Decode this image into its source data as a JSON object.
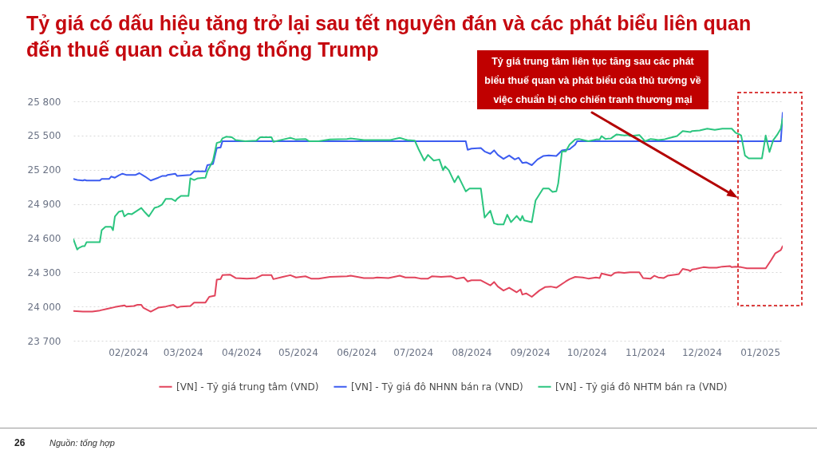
{
  "chart_data": {
    "type": "line",
    "title": "Tỷ giá có dấu hiệu tăng trở lại sau tết nguyên đán và các phát biểu liên quan đến thuế quan của tổng thống Trump",
    "annotations": [
      "Tỷ giá trung tâm liên tục tăng sau các phát biểu thuế quan và phát biểu của thủ tướng về việc chuẩn bị cho chiến tranh thương mại",
      "26",
      "Nguồn: tổng hợp"
    ],
    "xlim": [
      "2024-01-03",
      "2025-01-13"
    ],
    "xticks": [
      {
        "value": "2024-02-01",
        "label": "02/2024"
      },
      {
        "value": "2024-03-01",
        "label": "03/2024"
      },
      {
        "value": "2024-04-01",
        "label": "04/2024"
      },
      {
        "value": "2024-05-01",
        "label": "05/2024"
      },
      {
        "value": "2024-06-01",
        "label": "06/2024"
      },
      {
        "value": "2024-07-01",
        "label": "07/2024"
      },
      {
        "value": "2024-08-01",
        "label": "08/2024"
      },
      {
        "value": "2024-09-01",
        "label": "09/2024"
      },
      {
        "value": "2024-10-01",
        "label": "10/2024"
      },
      {
        "value": "2024-11-01",
        "label": "11/2024"
      },
      {
        "value": "2024-12-01",
        "label": "12/2024"
      },
      {
        "value": "2025-01-01",
        "label": "01/2025"
      }
    ],
    "ylim": [
      23700,
      25800
    ],
    "yticks": [
      {
        "value": 23700,
        "label": "23 700"
      },
      {
        "value": 24000,
        "label": "24 000"
      },
      {
        "value": 24300,
        "label": "24 300"
      },
      {
        "value": 24600,
        "label": "24 600"
      },
      {
        "value": 24900,
        "label": "24 900"
      },
      {
        "value": 25200,
        "label": "25 200"
      },
      {
        "value": 25500,
        "label": "25 500"
      },
      {
        "value": 25800,
        "label": "25 800"
      }
    ],
    "grid": "y",
    "legend": "bottom",
    "line_style": "solid",
    "series": [
      {
        "name": "[VN] - Tỷ giá trung tâm (VND)",
        "color": "#e2445c",
        "x": [
          "2024-01-03",
          "2024-01-08",
          "2024-01-13",
          "2024-01-17",
          "2024-01-21",
          "2024-01-25",
          "2024-01-30",
          "2024-01-31",
          "2024-02-04",
          "2024-02-06",
          "2024-02-08",
          "2024-02-09",
          "2024-02-13",
          "2024-02-17",
          "2024-02-21",
          "2024-02-25",
          "2024-02-27",
          "2024-02-29",
          "2024-03-05",
          "2024-03-07",
          "2024-03-13",
          "2024-03-15",
          "2024-03-18",
          "2024-03-19",
          "2024-03-21",
          "2024-03-22",
          "2024-03-26",
          "2024-03-29",
          "2024-04-04",
          "2024-04-09",
          "2024-04-12",
          "2024-04-17",
          "2024-04-18",
          "2024-04-23",
          "2024-04-27",
          "2024-04-30",
          "2024-05-05",
          "2024-05-08",
          "2024-05-12",
          "2024-05-18",
          "2024-05-27",
          "2024-05-29",
          "2024-06-05",
          "2024-06-10",
          "2024-06-12",
          "2024-06-18",
          "2024-06-24",
          "2024-06-27",
          "2024-07-02",
          "2024-07-05",
          "2024-07-09",
          "2024-07-11",
          "2024-07-16",
          "2024-07-21",
          "2024-07-24",
          "2024-07-28",
          "2024-07-30",
          "2024-08-01",
          "2024-08-06",
          "2024-08-11",
          "2024-08-13",
          "2024-08-15",
          "2024-08-18",
          "2024-08-21",
          "2024-08-25",
          "2024-08-27",
          "2024-08-28",
          "2024-08-30",
          "2024-09-02",
          "2024-09-06",
          "2024-09-09",
          "2024-09-12",
          "2024-09-15",
          "2024-09-20",
          "2024-09-22",
          "2024-09-25",
          "2024-09-29",
          "2024-10-02",
          "2024-10-06",
          "2024-10-08",
          "2024-10-09",
          "2024-10-14",
          "2024-10-16",
          "2024-10-18",
          "2024-10-21",
          "2024-10-24",
          "2024-10-29",
          "2024-10-31",
          "2024-11-04",
          "2024-11-06",
          "2024-11-08",
          "2024-11-11",
          "2024-11-13",
          "2024-11-17",
          "2024-11-19",
          "2024-11-21",
          "2024-11-24",
          "2024-11-25",
          "2024-11-26",
          "2024-11-28",
          "2024-12-02",
          "2024-12-05",
          "2024-12-09",
          "2024-12-12",
          "2024-12-16",
          "2024-12-17",
          "2024-12-19",
          "2024-12-22",
          "2024-12-25",
          "2025-01-04",
          "2025-01-07",
          "2025-01-09",
          "2025-01-12",
          "2025-01-13"
        ],
        "values": [
          23960,
          23955,
          23955,
          23965,
          23980,
          23995,
          24010,
          24000,
          24005,
          24015,
          24015,
          23990,
          23955,
          23990,
          24000,
          24015,
          23990,
          24000,
          24005,
          24035,
          24035,
          24085,
          24095,
          24235,
          24240,
          24275,
          24280,
          24250,
          24245,
          24250,
          24275,
          24275,
          24240,
          24260,
          24275,
          24255,
          24265,
          24245,
          24245,
          24260,
          24265,
          24270,
          24250,
          24250,
          24255,
          24250,
          24270,
          24255,
          24255,
          24245,
          24245,
          24265,
          24260,
          24265,
          24245,
          24255,
          24220,
          24230,
          24230,
          24185,
          24215,
          24175,
          24140,
          24165,
          24125,
          24150,
          24105,
          24115,
          24085,
          24140,
          24170,
          24175,
          24165,
          24220,
          24240,
          24260,
          24255,
          24245,
          24255,
          24250,
          24290,
          24270,
          24295,
          24300,
          24295,
          24300,
          24300,
          24250,
          24245,
          24270,
          24255,
          24250,
          24270,
          24280,
          24285,
          24330,
          24320,
          24310,
          24325,
          24330,
          24345,
          24340,
          24340,
          24350,
          24355,
          24345,
          24350,
          24345,
          24335,
          24335,
          24410,
          24465,
          24495,
          24530
        ]
      },
      {
        "name": "[VN] - Tỷ giá đô NHNN bán ra (VND)",
        "color": "#3c5cf0",
        "x": [
          "2024-01-03",
          "2024-01-05",
          "2024-01-08",
          "2024-01-09",
          "2024-01-10",
          "2024-01-17",
          "2024-01-18",
          "2024-01-22",
          "2024-01-23",
          "2024-01-25",
          "2024-01-27",
          "2024-01-29",
          "2024-01-31",
          "2024-02-05",
          "2024-02-07",
          "2024-02-10",
          "2024-02-13",
          "2024-02-17",
          "2024-02-19",
          "2024-02-21",
          "2024-02-22",
          "2024-02-26",
          "2024-02-27",
          "2024-03-05",
          "2024-03-07",
          "2024-03-13",
          "2024-03-14",
          "2024-03-17",
          "2024-03-19",
          "2024-03-21",
          "2024-03-22",
          "2024-07-29",
          "2024-07-30",
          "2024-08-01",
          "2024-08-06",
          "2024-08-08",
          "2024-08-11",
          "2024-08-13",
          "2024-08-15",
          "2024-08-18",
          "2024-08-21",
          "2024-08-24",
          "2024-08-26",
          "2024-08-28",
          "2024-08-30",
          "2024-09-02",
          "2024-09-05",
          "2024-09-08",
          "2024-09-11",
          "2024-09-15",
          "2024-09-18",
          "2024-09-22",
          "2024-09-25",
          "2024-09-26",
          "2025-01-12",
          "2025-01-13"
        ],
        "values": [
          25120,
          25110,
          25105,
          25110,
          25105,
          25105,
          25120,
          25120,
          25140,
          25130,
          25150,
          25165,
          25155,
          25155,
          25170,
          25140,
          25105,
          25130,
          25145,
          25145,
          25155,
          25165,
          25145,
          25155,
          25185,
          25185,
          25240,
          25250,
          25390,
          25395,
          25450,
          25450,
          25375,
          25385,
          25390,
          25360,
          25340,
          25370,
          25330,
          25295,
          25325,
          25290,
          25305,
          25260,
          25265,
          25240,
          25290,
          25320,
          25325,
          25320,
          25370,
          25380,
          25420,
          25450,
          25450,
          25700
        ]
      },
      {
        "name": "[VN] - Tỷ giá đô NHTM bán ra (VND)",
        "color": "#2bc57f",
        "x": [
          "2024-01-03",
          "2024-01-05",
          "2024-01-06",
          "2024-01-08",
          "2024-01-09",
          "2024-01-10",
          "2024-01-17",
          "2024-01-18",
          "2024-01-20",
          "2024-01-23",
          "2024-01-24",
          "2024-01-25",
          "2024-01-27",
          "2024-01-29",
          "2024-01-30",
          "2024-02-01",
          "2024-02-03",
          "2024-02-08",
          "2024-02-10",
          "2024-02-12",
          "2024-02-15",
          "2024-02-17",
          "2024-02-19",
          "2024-02-21",
          "2024-02-24",
          "2024-02-26",
          "2024-02-27",
          "2024-02-29",
          "2024-03-04",
          "2024-03-05",
          "2024-03-07",
          "2024-03-09",
          "2024-03-13",
          "2024-03-14",
          "2024-03-17",
          "2024-03-19",
          "2024-03-21",
          "2024-03-22",
          "2024-03-24",
          "2024-03-27",
          "2024-03-29",
          "2024-04-03",
          "2024-04-09",
          "2024-04-11",
          "2024-04-17",
          "2024-04-18",
          "2024-04-23",
          "2024-04-27",
          "2024-04-30",
          "2024-05-05",
          "2024-05-07",
          "2024-05-12",
          "2024-05-18",
          "2024-05-27",
          "2024-05-29",
          "2024-06-05",
          "2024-06-12",
          "2024-06-19",
          "2024-06-24",
          "2024-06-28",
          "2024-07-02",
          "2024-07-04",
          "2024-07-07",
          "2024-07-09",
          "2024-07-12",
          "2024-07-15",
          "2024-07-17",
          "2024-07-18",
          "2024-07-20",
          "2024-07-23",
          "2024-07-25",
          "2024-07-29",
          "2024-07-31",
          "2024-08-06",
          "2024-08-08",
          "2024-08-11",
          "2024-08-13",
          "2024-08-15",
          "2024-08-18",
          "2024-08-20",
          "2024-08-22",
          "2024-08-25",
          "2024-08-27",
          "2024-08-28",
          "2024-08-29",
          "2024-09-02",
          "2024-09-04",
          "2024-09-08",
          "2024-09-11",
          "2024-09-13",
          "2024-09-15",
          "2024-09-16",
          "2024-09-18",
          "2024-09-20",
          "2024-09-22",
          "2024-09-25",
          "2024-09-27",
          "2024-10-02",
          "2024-10-06",
          "2024-10-08",
          "2024-10-09",
          "2024-10-11",
          "2024-10-14",
          "2024-10-17",
          "2024-10-21",
          "2024-10-23",
          "2024-10-24",
          "2024-10-29",
          "2024-11-01",
          "2024-11-04",
          "2024-11-06",
          "2024-11-08",
          "2024-11-11",
          "2024-11-13",
          "2024-11-18",
          "2024-11-21",
          "2024-11-25",
          "2024-11-26",
          "2024-11-30",
          "2024-12-04",
          "2024-12-08",
          "2024-12-12",
          "2024-12-17",
          "2024-12-19",
          "2024-12-21",
          "2024-12-22",
          "2024-12-24",
          "2024-12-26",
          "2025-01-02",
          "2025-01-04",
          "2025-01-06",
          "2025-01-08",
          "2025-01-10",
          "2025-01-12",
          "2025-01-13"
        ],
        "values": [
          24590,
          24500,
          24515,
          24530,
          24530,
          24565,
          24565,
          24670,
          24700,
          24700,
          24670,
          24790,
          24830,
          24840,
          24790,
          24815,
          24810,
          24865,
          24825,
          24790,
          24865,
          24875,
          24895,
          24945,
          24945,
          24925,
          24945,
          24970,
          24970,
          25125,
          25110,
          25125,
          25130,
          25185,
          25280,
          25435,
          25445,
          25475,
          25490,
          25485,
          25460,
          25450,
          25455,
          25485,
          25485,
          25445,
          25465,
          25480,
          25465,
          25470,
          25450,
          25450,
          25465,
          25470,
          25475,
          25460,
          25460,
          25460,
          25480,
          25460,
          25455,
          25380,
          25280,
          25330,
          25280,
          25290,
          25195,
          25230,
          25195,
          25090,
          25145,
          25010,
          25035,
          25035,
          24780,
          24840,
          24730,
          24720,
          24720,
          24805,
          24740,
          24795,
          24755,
          24795,
          24755,
          24740,
          24930,
          25035,
          25035,
          25005,
          25010,
          25080,
          25360,
          25360,
          25420,
          25465,
          25470,
          25450,
          25465,
          25465,
          25495,
          25470,
          25475,
          25510,
          25500,
          25505,
          25495,
          25505,
          25450,
          25470,
          25465,
          25460,
          25465,
          25475,
          25495,
          25540,
          25530,
          25540,
          25545,
          25560,
          25550,
          25560,
          25560,
          25525,
          25510,
          25500,
          25325,
          25300,
          25300,
          25500,
          25355,
          25460,
          25505,
          25560,
          25650
        ]
      }
    ]
  }
}
